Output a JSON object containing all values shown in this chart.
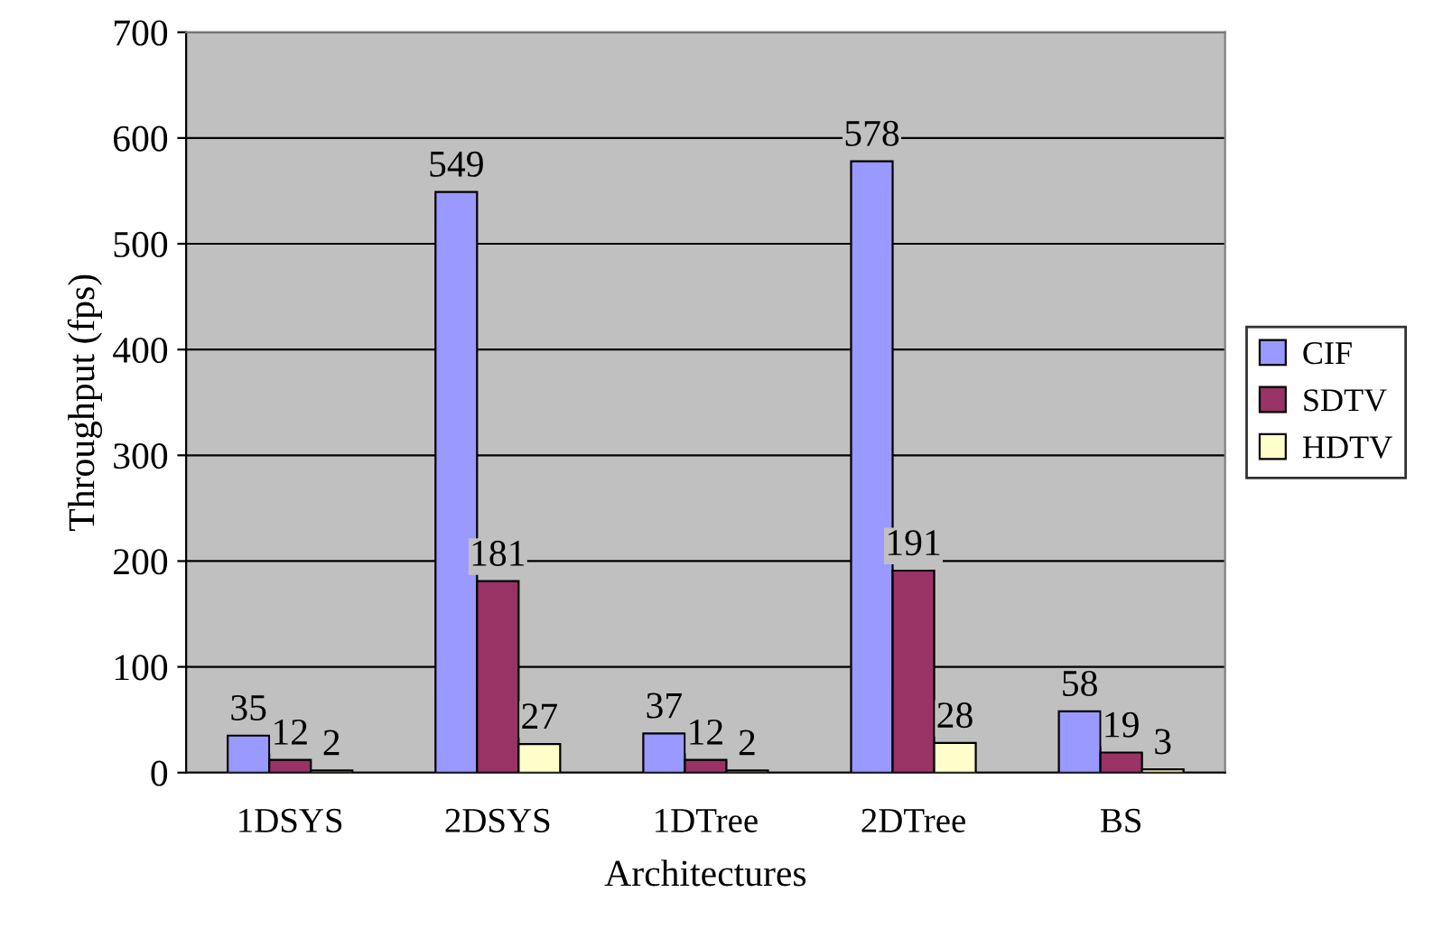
{
  "chart_data": {
    "type": "bar",
    "xlabel": "Architectures",
    "ylabel": "Throughput (fps)",
    "categories": [
      "1DSYS",
      "2DSYS",
      "1DTree",
      "2DTree",
      "BS"
    ],
    "series": [
      {
        "name": "CIF",
        "color": "#9999ff",
        "values": [
          35,
          549,
          37,
          578,
          58
        ]
      },
      {
        "name": "SDTV",
        "color": "#993366",
        "values": [
          12,
          181,
          12,
          191,
          19
        ]
      },
      {
        "name": "HDTV",
        "color": "#ffffcc",
        "values": [
          2,
          27,
          2,
          28,
          3
        ]
      }
    ],
    "ylim": [
      0,
      700
    ],
    "yticks": [
      0,
      100,
      200,
      300,
      400,
      500,
      600,
      700
    ],
    "grid": "y",
    "legend": "right",
    "data_labels": true
  }
}
